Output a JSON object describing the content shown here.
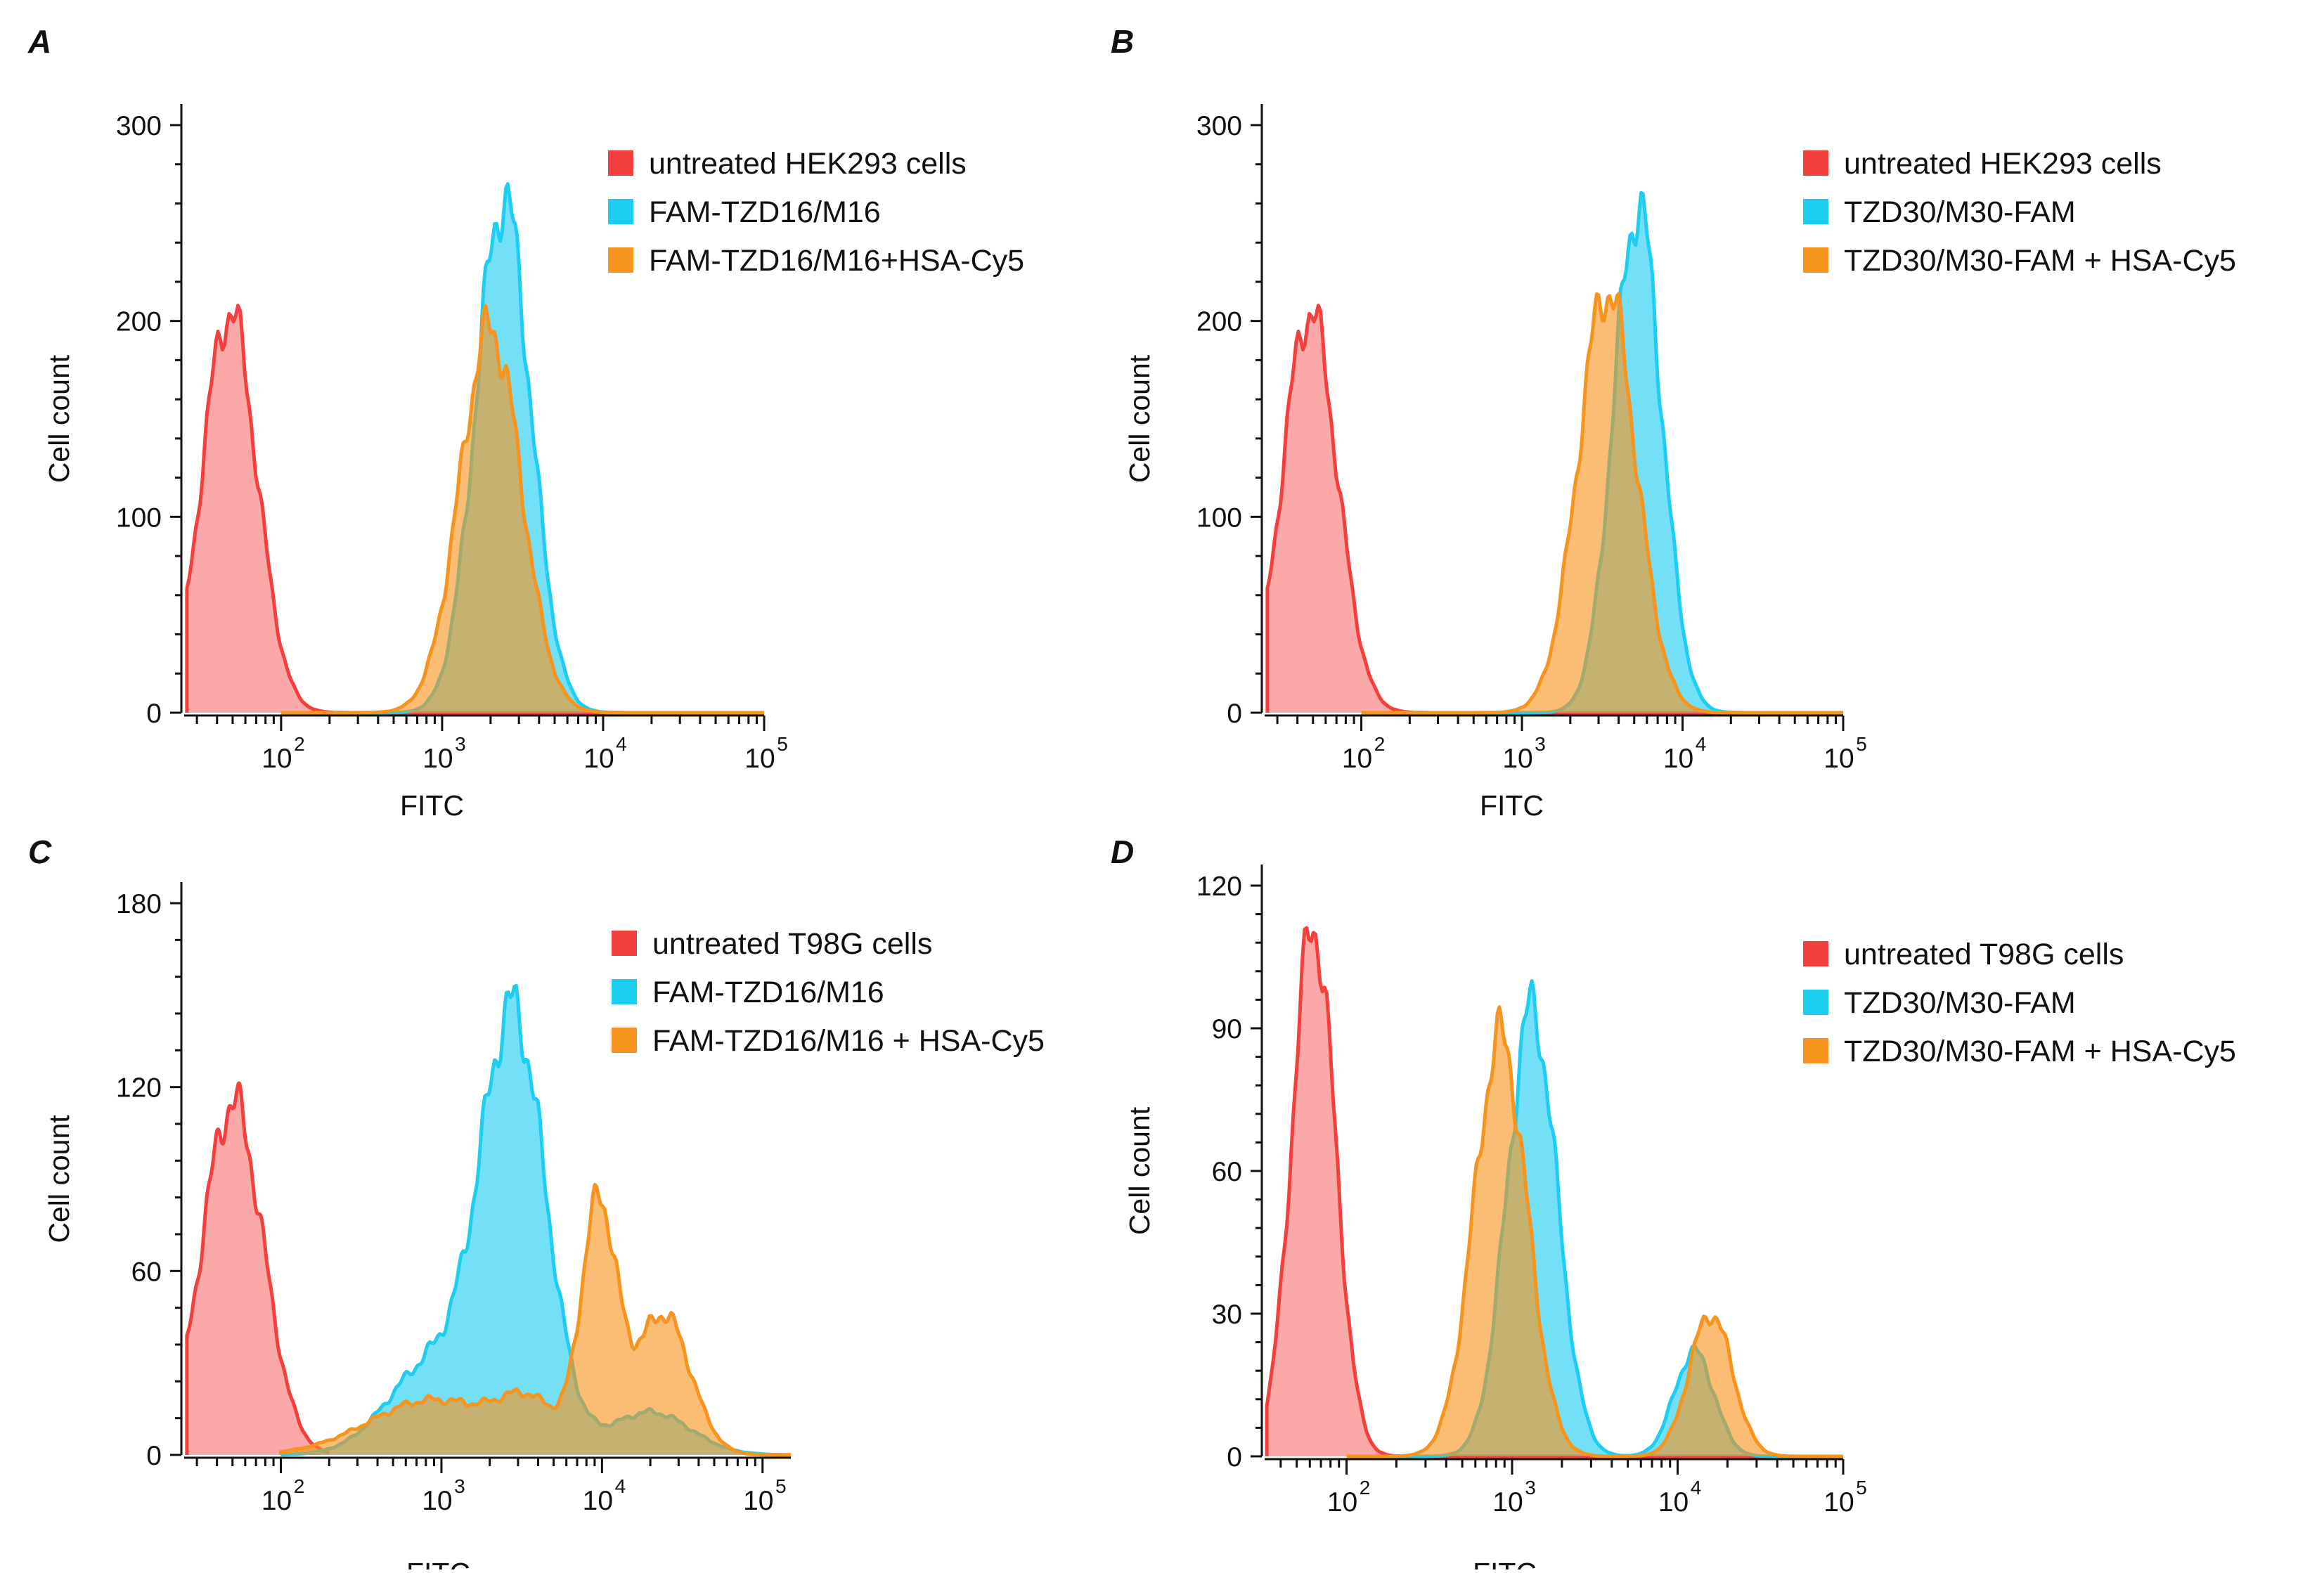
{
  "colors": {
    "untreated": "#f43f3f",
    "blue": "#1ecdf2",
    "orange": "#f7941d",
    "overlap": "#b7b58a"
  },
  "chart_data": [
    {
      "panel": "A",
      "type": "area",
      "xscale": "log",
      "xlabel": "FITC",
      "ylabel": "Cell count",
      "xlim": [
        25,
        100000
      ],
      "ylim": [
        0,
        300
      ],
      "yticks": [
        "0",
        "100",
        "200",
        "300"
      ],
      "xticks": [
        {
          "base": "10",
          "exp": "2"
        },
        {
          "base": "10",
          "exp": "3"
        },
        {
          "base": "10",
          "exp": "4"
        },
        {
          "base": "10",
          "exp": "5"
        }
      ],
      "series": [
        {
          "name": "untreated HEK293 cells",
          "color": "#f43f3f",
          "mu": 1.68,
          "sigma": 0.17,
          "peak": 205,
          "xmin": 26,
          "xmax": 100000
        },
        {
          "name": "FAM-TZD16/M16",
          "color": "#1ecdf2",
          "mu": 3.38,
          "sigma": 0.17,
          "peak": 262,
          "xmin": 100,
          "xmax": 100000
        },
        {
          "name": "FAM-TZD16/M16+HSA-Cy5",
          "color": "#f7941d",
          "mu": 3.3,
          "sigma": 0.19,
          "peak": 196,
          "xmin": 100,
          "xmax": 100000
        }
      ]
    },
    {
      "panel": "B",
      "type": "area",
      "xscale": "log",
      "xlabel": "FITC",
      "ylabel": "Cell count",
      "xlim": [
        25,
        100000
      ],
      "ylim": [
        0,
        300
      ],
      "yticks": [
        "0",
        "100",
        "200",
        "300"
      ],
      "xticks": [
        {
          "base": "10",
          "exp": "2"
        },
        {
          "base": "10",
          "exp": "3"
        },
        {
          "base": "10",
          "exp": "4"
        },
        {
          "base": "10",
          "exp": "5"
        }
      ],
      "series": [
        {
          "name": "untreated HEK293 cells",
          "color": "#f43f3f",
          "mu": 1.68,
          "sigma": 0.17,
          "peak": 205,
          "xmin": 26,
          "xmax": 100000
        },
        {
          "name": "TZD30/M30-FAM",
          "color": "#1ecdf2",
          "mu": 3.72,
          "sigma": 0.15,
          "peak": 258,
          "xmin": 100,
          "xmax": 100000
        },
        {
          "name": "TZD30/M30-FAM + HSA-Cy5",
          "color": "#f7941d",
          "mu": 3.53,
          "sigma": 0.18,
          "peak": 216,
          "xmin": 100,
          "xmax": 100000
        }
      ]
    },
    {
      "panel": "C",
      "type": "area",
      "xscale": "log",
      "xlabel": "FITC",
      "ylabel": "Cell count",
      "xlim": [
        25,
        150000
      ],
      "ylim": [
        0,
        180
      ],
      "yticks": [
        "0",
        "60",
        "120",
        "180"
      ],
      "xticks": [
        {
          "base": "10",
          "exp": "2"
        },
        {
          "base": "10",
          "exp": "3"
        },
        {
          "base": "10",
          "exp": "4"
        },
        {
          "base": "10",
          "exp": "5"
        }
      ],
      "series": [
        {
          "name": "untreated T98G cells",
          "color": "#f43f3f",
          "mu": 1.7,
          "sigma": 0.19,
          "peak": 115,
          "xmin": 26,
          "xmax": 200
        },
        {
          "name": "FAM-TZD16/M16",
          "color": "#1ecdf2",
          "mu": 3.45,
          "sigma": 0.2,
          "peak": 140,
          "xmin": 100,
          "xmax": 150000,
          "extra": [
            [
              2.95,
              0.28,
              30
            ],
            [
              4.3,
              0.25,
              14
            ]
          ]
        },
        {
          "name": "FAM-TZD16/M16 + HSA-Cy5",
          "color": "#f7941d",
          "mu": 3.98,
          "sigma": 0.11,
          "peak": 80,
          "xmin": 100,
          "xmax": 150000,
          "extra": [
            [
              4.38,
              0.17,
              46
            ],
            [
              2.95,
              0.4,
              18
            ],
            [
              3.55,
              0.18,
              14
            ]
          ]
        }
      ]
    },
    {
      "panel": "D",
      "type": "area",
      "xscale": "log",
      "xlabel": "FITC",
      "ylabel": "Cell count",
      "xlim": [
        32,
        100000
      ],
      "ylim": [
        0,
        120
      ],
      "yticks": [
        "0",
        "30",
        "60",
        "90",
        "120"
      ],
      "xticks": [
        {
          "base": "10",
          "exp": "2"
        },
        {
          "base": "10",
          "exp": "3"
        },
        {
          "base": "10",
          "exp": "4"
        },
        {
          "base": "10",
          "exp": "5"
        }
      ],
      "series": [
        {
          "name": "untreated T98G cells",
          "color": "#f43f3f",
          "mu": 1.8,
          "sigma": 0.13,
          "peak": 112,
          "xmin": 33,
          "xmax": 100000
        },
        {
          "name": "TZD30/M30-FAM",
          "color": "#1ecdf2",
          "mu": 3.12,
          "sigma": 0.15,
          "peak": 94,
          "xmin": 100,
          "xmax": 100000,
          "extra": [
            [
              4.1,
              0.12,
              22
            ]
          ]
        },
        {
          "name": "TZD30/M30-FAM + HSA-Cy5",
          "color": "#f7941d",
          "mu": 2.93,
          "sigma": 0.16,
          "peak": 88,
          "xmin": 100,
          "xmax": 100000,
          "extra": [
            [
              4.2,
              0.13,
              30
            ]
          ]
        }
      ]
    }
  ]
}
